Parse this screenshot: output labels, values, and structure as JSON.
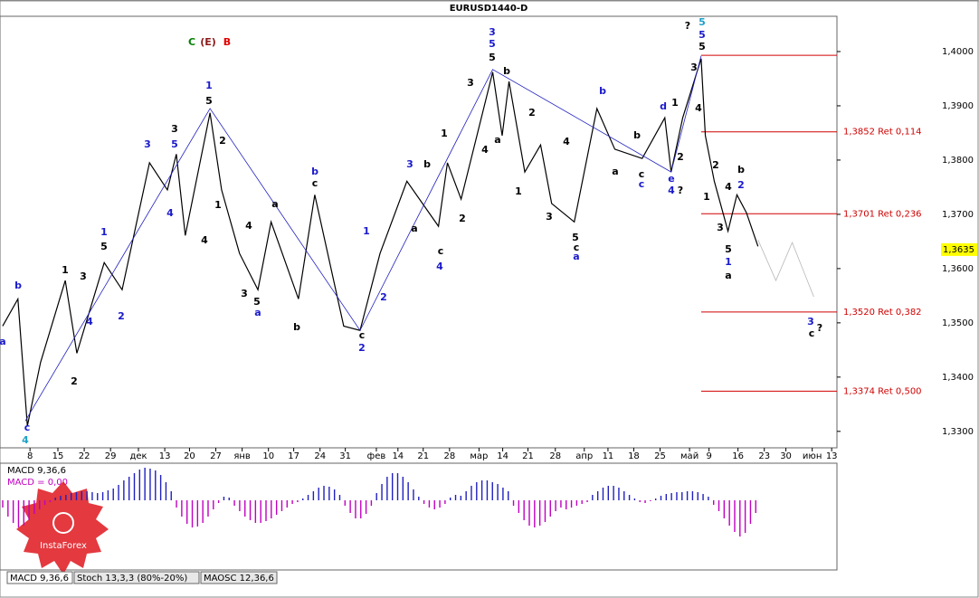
{
  "chart_data": {
    "type": "price",
    "title": "EURUSD1440-D",
    "xlim": [
      0,
      159
    ],
    "ylim": [
      1.3268,
      1.4065
    ],
    "yticks": [
      {
        "value": 1.4,
        "label": "1,4000"
      },
      {
        "value": 1.39,
        "label": "1,3900"
      },
      {
        "value": 1.38,
        "label": "1,3800"
      },
      {
        "value": 1.37,
        "label": "1,3700"
      },
      {
        "value": 1.36,
        "label": "1,3600"
      },
      {
        "value": 1.35,
        "label": "1,3500"
      },
      {
        "value": 1.34,
        "label": "1,3400"
      },
      {
        "value": 1.33,
        "label": "1,3300"
      }
    ],
    "xticks": [
      {
        "value": 5.7,
        "label": "8"
      },
      {
        "value": 11,
        "label": "15"
      },
      {
        "value": 16,
        "label": "22"
      },
      {
        "value": 21,
        "label": "29"
      },
      {
        "value": 26.3,
        "label": "дек"
      },
      {
        "value": 31.3,
        "label": "13"
      },
      {
        "value": 36,
        "label": "20"
      },
      {
        "value": 41,
        "label": "27"
      },
      {
        "value": 46,
        "label": "янв"
      },
      {
        "value": 51,
        "label": "10"
      },
      {
        "value": 55.8,
        "label": "17"
      },
      {
        "value": 60.8,
        "label": "24"
      },
      {
        "value": 65.6,
        "label": "31"
      },
      {
        "value": 71.5,
        "label": "фев"
      },
      {
        "value": 75.6,
        "label": "14"
      },
      {
        "value": 80.4,
        "label": "21"
      },
      {
        "value": 85.4,
        "label": "28"
      },
      {
        "value": 91,
        "label": "мар"
      },
      {
        "value": 95.5,
        "label": "14"
      },
      {
        "value": 100.3,
        "label": "21"
      },
      {
        "value": 105.5,
        "label": "28"
      },
      {
        "value": 111,
        "label": "апр"
      },
      {
        "value": 115.5,
        "label": "11"
      },
      {
        "value": 120.4,
        "label": "18"
      },
      {
        "value": 125.4,
        "label": "25"
      },
      {
        "value": 131,
        "label": "май"
      },
      {
        "value": 134.7,
        "label": "9"
      },
      {
        "value": 140.2,
        "label": "16"
      },
      {
        "value": 145.2,
        "label": "23"
      },
      {
        "value": 149.3,
        "label": "30"
      },
      {
        "value": 154.3,
        "label": "июн"
      },
      {
        "value": 158,
        "label": "13"
      }
    ],
    "series": [
      {
        "color": "#000000",
        "x": [
          0.5,
          3.4,
          5.2,
          7.7,
          12.4,
          14.6,
          19.8,
          23.2,
          28.4,
          31.8,
          33.5,
          35.2,
          39.9,
          42.1,
          45.5,
          49,
          51.5,
          56.7,
          59.8,
          65.3,
          68.4,
          72.2,
          77.3,
          83.3,
          85,
          87.6,
          93.6,
          95.4,
          96.7,
          99.7,
          102.7,
          104.8,
          109.1,
          113.4,
          116.8,
          122,
          126.3,
          127.5,
          129.7,
          133.2,
          134,
          135.7,
          138.3,
          140,
          141.8,
          144
        ],
        "values": [
          1.3494,
          1.3544,
          1.331,
          1.3427,
          1.3578,
          1.3444,
          1.3611,
          1.3561,
          1.3795,
          1.3745,
          1.3811,
          1.3661,
          1.3887,
          1.3745,
          1.3628,
          1.3561,
          1.3686,
          1.3544,
          1.3736,
          1.3494,
          1.3486,
          1.3628,
          1.3761,
          1.3678,
          1.3795,
          1.3728,
          1.3962,
          1.3845,
          1.3945,
          1.3778,
          1.3828,
          1.372,
          1.3686,
          1.3895,
          1.382,
          1.3803,
          1.3878,
          1.3778,
          1.3878,
          1.3987,
          1.3845,
          1.3761,
          1.3669,
          1.3736,
          1.3703,
          1.3641
        ]
      },
      {
        "color": "#2020c0",
        "x": [
          4.8,
          39.9,
          68.4,
          93.6,
          127.5,
          133.2
        ],
        "values": [
          1.3319,
          1.3895,
          1.3486,
          1.3967,
          1.3778,
          1.3992
        ]
      },
      {
        "color": "#b8b8b8",
        "x": [
          144,
          147.4,
          150.5,
          154.6
        ],
        "values": [
          1.3653,
          1.3578,
          1.3648,
          1.3548
        ]
      }
    ],
    "levels": [
      {
        "value": 1.3993
      },
      {
        "value": 1.3852,
        "label": "1,3852 Ret 0,114"
      },
      {
        "value": 1.3701,
        "label": "1,3701 Ret 0,236"
      },
      {
        "value": 1.352,
        "label": "1,3520 Ret 0,382"
      },
      {
        "value": 1.3374,
        "label": "1,3374 Ret 0,500"
      }
    ],
    "level_color": "#d00000",
    "current_price": {
      "value": 1.3635,
      "label": "1,3635"
    },
    "annotations": [
      {
        "text": "C",
        "color": "#008000"
      },
      {
        "text": "(E)",
        "color": "#8b1a1a"
      },
      {
        "text": "B",
        "color": "#e00000"
      },
      {
        "text": "b",
        "color": "#1a1acc"
      },
      {
        "text": "a",
        "color": "#1a1acc"
      },
      {
        "text": "c",
        "color": "#1a1acc"
      },
      {
        "text": "4",
        "color": "#1ea0c8"
      },
      {
        "text": "1",
        "color": "#000"
      },
      {
        "text": "3",
        "color": "#000"
      },
      {
        "text": "5",
        "color": "#000"
      },
      {
        "text": "1",
        "color": "#1a1acc"
      },
      {
        "text": "4",
        "color": "#1a1acc"
      },
      {
        "text": "2",
        "color": "#000"
      },
      {
        "text": "2",
        "color": "#1a1acc"
      },
      {
        "text": "3",
        "color": "#1a1acc"
      },
      {
        "text": "3",
        "color": "#000"
      },
      {
        "text": "5",
        "color": "#1a1acc"
      },
      {
        "text": "4",
        "color": "#1a1acc"
      },
      {
        "text": "4",
        "color": "#000"
      },
      {
        "text": "1",
        "color": "#1a1acc"
      },
      {
        "text": "5",
        "color": "#000"
      },
      {
        "text": "2",
        "color": "#000"
      },
      {
        "text": "1",
        "color": "#000"
      },
      {
        "text": "4",
        "color": "#000"
      },
      {
        "text": "3",
        "color": "#000"
      },
      {
        "text": "5",
        "color": "#000"
      },
      {
        "text": "a",
        "color": "#1a1acc"
      },
      {
        "text": "a",
        "color": "#000"
      },
      {
        "text": "b",
        "color": "#000"
      },
      {
        "text": "b",
        "color": "#1a1acc"
      },
      {
        "text": "c",
        "color": "#000"
      },
      {
        "text": "c",
        "color": "#000"
      },
      {
        "text": "2",
        "color": "#1a1acc"
      },
      {
        "text": "1",
        "color": "#1a1acc"
      },
      {
        "text": "2",
        "color": "#1a1acc"
      },
      {
        "text": "3",
        "color": "#1a1acc"
      },
      {
        "text": "a",
        "color": "#000"
      },
      {
        "text": "b",
        "color": "#000"
      },
      {
        "text": "c",
        "color": "#000"
      },
      {
        "text": "4",
        "color": "#1a1acc"
      },
      {
        "text": "1",
        "color": "#000"
      },
      {
        "text": "2",
        "color": "#000"
      },
      {
        "text": "3",
        "color": "#000"
      },
      {
        "text": "3",
        "color": "#1a1acc"
      },
      {
        "text": "5",
        "color": "#1a1acc"
      },
      {
        "text": "5",
        "color": "#000"
      },
      {
        "text": "b",
        "color": "#000"
      },
      {
        "text": "a",
        "color": "#000"
      },
      {
        "text": "4",
        "color": "#000"
      },
      {
        "text": "1",
        "color": "#000"
      },
      {
        "text": "2",
        "color": "#000"
      },
      {
        "text": "3",
        "color": "#000"
      },
      {
        "text": "4",
        "color": "#000"
      },
      {
        "text": "5",
        "color": "#000"
      },
      {
        "text": "c",
        "color": "#000"
      },
      {
        "text": "a",
        "color": "#1a1acc"
      },
      {
        "text": "b",
        "color": "#1a1acc"
      },
      {
        "text": "a",
        "color": "#000"
      },
      {
        "text": "b",
        "color": "#000"
      },
      {
        "text": "c",
        "color": "#000"
      },
      {
        "text": "c",
        "color": "#1a1acc"
      },
      {
        "text": "d",
        "color": "#1a1acc"
      },
      {
        "text": "1",
        "color": "#000"
      },
      {
        "text": "e",
        "color": "#1a1acc"
      },
      {
        "text": "4",
        "color": "#1a1acc"
      },
      {
        "text": "?",
        "color": "#000"
      },
      {
        "text": "2",
        "color": "#000"
      },
      {
        "text": "3",
        "color": "#000"
      },
      {
        "text": "4",
        "color": "#000"
      },
      {
        "text": "5",
        "color": "#000"
      },
      {
        "text": "5",
        "color": "#1a1acc"
      },
      {
        "text": "5",
        "color": "#1ea0c8"
      },
      {
        "text": "?",
        "color": "#000"
      },
      {
        "text": "1",
        "color": "#000"
      },
      {
        "text": "2",
        "color": "#000"
      },
      {
        "text": "3",
        "color": "#000"
      },
      {
        "text": "4",
        "color": "#000"
      },
      {
        "text": "5",
        "color": "#000"
      },
      {
        "text": "1",
        "color": "#1a1acc"
      },
      {
        "text": "a",
        "color": "#000"
      },
      {
        "text": "2",
        "color": "#1a1acc"
      },
      {
        "text": "b",
        "color": "#000"
      },
      {
        "text": "3",
        "color": "#1a1acc"
      },
      {
        "text": "c",
        "color": "#000"
      },
      {
        "text": "?",
        "color": "#000"
      }
    ],
    "macd": {
      "title": "MACD 9,36,6",
      "value_text": "MACD = 0,00",
      "mlim": [
        -0.0045,
        0.0045
      ],
      "pos_color": "#2020c0",
      "neg_color": "#c000c0",
      "values": [
        -0.0008,
        -0.0018,
        -0.0025,
        -0.003,
        -0.0028,
        -0.0022,
        -0.0015,
        -0.001,
        -0.0005,
        -0.0002,
        0.0003,
        0.0005,
        0.0006,
        0.0008,
        0.0009,
        0.001,
        0.001,
        0.0009,
        0.0008,
        0.0009,
        0.0011,
        0.0013,
        0.0017,
        0.0022,
        0.0026,
        0.003,
        0.0034,
        0.0036,
        0.0035,
        0.0033,
        0.0028,
        0.002,
        0.001,
        -0.0008,
        -0.0018,
        -0.0026,
        -0.003,
        -0.0029,
        -0.0025,
        -0.0018,
        -0.001,
        -0.0003,
        0.0004,
        0.0003,
        -0.0006,
        -0.0012,
        -0.0018,
        -0.0022,
        -0.0025,
        -0.0025,
        -0.0023,
        -0.002,
        -0.0016,
        -0.0012,
        -0.0008,
        -0.0004,
        -0.0002,
        0.0002,
        0.0006,
        0.001,
        0.0014,
        0.0016,
        0.0015,
        0.0012,
        0.0006,
        -0.0006,
        -0.0014,
        -0.002,
        -0.002,
        -0.0015,
        -0.0006,
        0.0008,
        0.0018,
        0.0026,
        0.003,
        0.003,
        0.0026,
        0.002,
        0.0012,
        0.0004,
        -0.0004,
        -0.0008,
        -0.001,
        -0.0008,
        -0.0004,
        0.0003,
        0.0006,
        0.0005,
        0.001,
        0.0016,
        0.002,
        0.0022,
        0.0022,
        0.002,
        0.0018,
        0.0014,
        0.001,
        -0.0006,
        -0.0014,
        -0.0022,
        -0.0028,
        -0.003,
        -0.0028,
        -0.0024,
        -0.0018,
        -0.0012,
        -0.0008,
        -0.001,
        -0.0008,
        -0.0006,
        -0.0004,
        -0.0002,
        0.0006,
        0.001,
        0.0014,
        0.0016,
        0.0016,
        0.0014,
        0.001,
        0.0006,
        0.0002,
        -0.0002,
        -0.0003,
        -0.0001,
        0.0002,
        0.0005,
        0.0007,
        0.0008,
        0.0009,
        0.0009,
        0.001,
        0.001,
        0.0009,
        0.0007,
        0.0004,
        -0.0005,
        -0.0012,
        -0.002,
        -0.0028,
        -0.0035,
        -0.004,
        -0.0036,
        -0.0026,
        -0.0014
      ]
    },
    "tabs": [
      "MACD 9,36,6",
      "Stoch 13,3,3 (80%-20%)",
      "MAOSC 12,36,6"
    ],
    "logo": "InstaForex"
  }
}
